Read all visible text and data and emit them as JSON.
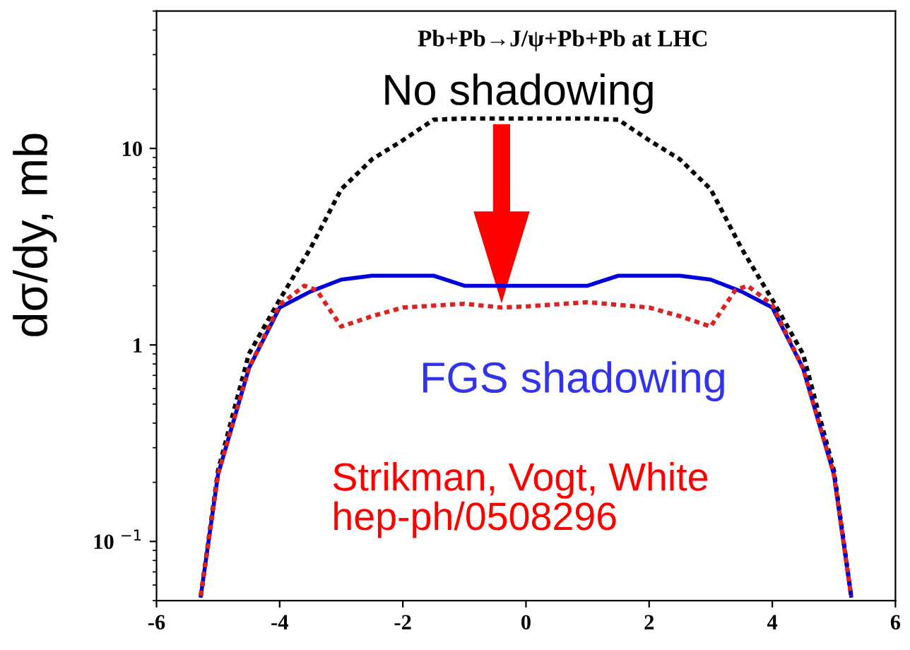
{
  "chart_data": {
    "type": "line",
    "title": "Pb+Pb→J/ψ+Pb+Pb at LHC",
    "ylabel": "dσ/dy, mb",
    "log": "y",
    "xlim": [
      -6,
      6
    ],
    "xticks": [
      -6,
      -4,
      -2,
      0,
      2,
      4,
      6
    ],
    "ylim": [
      0.05,
      50
    ],
    "yticks": [
      {
        "value": 0.1,
        "label": "10 $^{−1}$"
      },
      1,
      10
    ],
    "grid": false,
    "legend": false,
    "marker": "none",
    "series": [
      {
        "name": "No shadowing",
        "color": "#000000",
        "line_style": "dotted",
        "x": [
          -5.28,
          -5,
          -4.5,
          -4,
          -3.5,
          -3,
          -2.5,
          -2,
          -1.5,
          -1,
          0,
          1,
          1.5,
          2,
          2.5,
          3,
          3.5,
          4,
          4.5,
          5,
          5.28
        ],
        "values": [
          0.053,
          0.23,
          0.9,
          1.7,
          3.1,
          6.2,
          8.8,
          11,
          14,
          14.2,
          14.2,
          14.2,
          14,
          11,
          8.8,
          6.2,
          3.1,
          1.7,
          0.9,
          0.23,
          0.053
        ]
      },
      {
        "name": "FGS shadowing",
        "color": "#0000dd",
        "line_style": "solid",
        "x": [
          -5.28,
          -5,
          -4.5,
          -4,
          -3.5,
          -3,
          -2.5,
          -1.5,
          -1,
          0,
          1,
          1.5,
          2.5,
          3,
          3.5,
          4,
          4.5,
          5,
          5.28
        ],
        "values": [
          0.053,
          0.22,
          0.76,
          1.55,
          1.87,
          2.15,
          2.25,
          2.25,
          2.0,
          2.0,
          2.0,
          2.25,
          2.25,
          2.15,
          1.87,
          1.55,
          0.76,
          0.22,
          0.053
        ]
      },
      {
        "color": "#dd2222",
        "line_style": "dotted",
        "x": [
          -5.28,
          -5,
          -4.5,
          -4,
          -3.6,
          -3.4,
          -3,
          -2.5,
          -2,
          -1,
          -0.4,
          0,
          1,
          2,
          2.5,
          3,
          3.4,
          3.6,
          4,
          4.5,
          5,
          5.28
        ],
        "values": [
          0.053,
          0.22,
          0.76,
          1.6,
          2.0,
          1.9,
          1.24,
          1.4,
          1.55,
          1.62,
          1.55,
          1.57,
          1.65,
          1.55,
          1.4,
          1.24,
          1.9,
          2.0,
          1.6,
          0.76,
          0.22,
          0.053
        ]
      }
    ],
    "annotations": [
      "Strikman, Vogt, White\nhep-ph/0508296"
    ]
  }
}
